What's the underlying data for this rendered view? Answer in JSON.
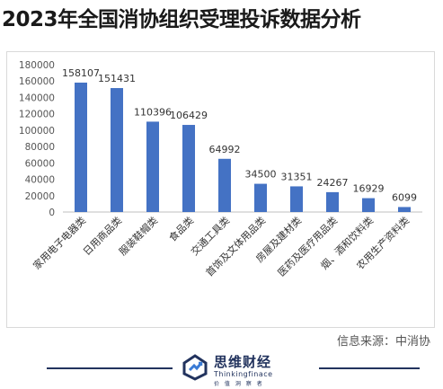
{
  "title": "2023年全国消协组织受理投诉数据分析",
  "source": "信息来源：中消协",
  "brand": {
    "name": "思维财经",
    "subtitle": "Thinkingfinace",
    "tagline": "价 值 洞 察 者"
  },
  "colors": {
    "bar": "#4472c4",
    "footer": "#22335e"
  },
  "chart_data": {
    "type": "bar",
    "title": "",
    "xlabel": "",
    "ylabel": "",
    "ylim": [
      0,
      180000
    ],
    "yticks": [
      0,
      20000,
      40000,
      60000,
      80000,
      100000,
      120000,
      140000,
      160000,
      180000
    ],
    "grid": false,
    "legend": "none",
    "categories": [
      "家用电子电器类",
      "日用商品类",
      "服装鞋帽类",
      "食品类",
      "交通工具类",
      "首饰及文体用品类",
      "房屋及建材类",
      "医药及医疗用品类",
      "烟、酒和饮料类",
      "农用生产资料类"
    ],
    "values": [
      158107,
      151431,
      110396,
      106429,
      64992,
      34500,
      31351,
      24267,
      16929,
      6099
    ]
  }
}
